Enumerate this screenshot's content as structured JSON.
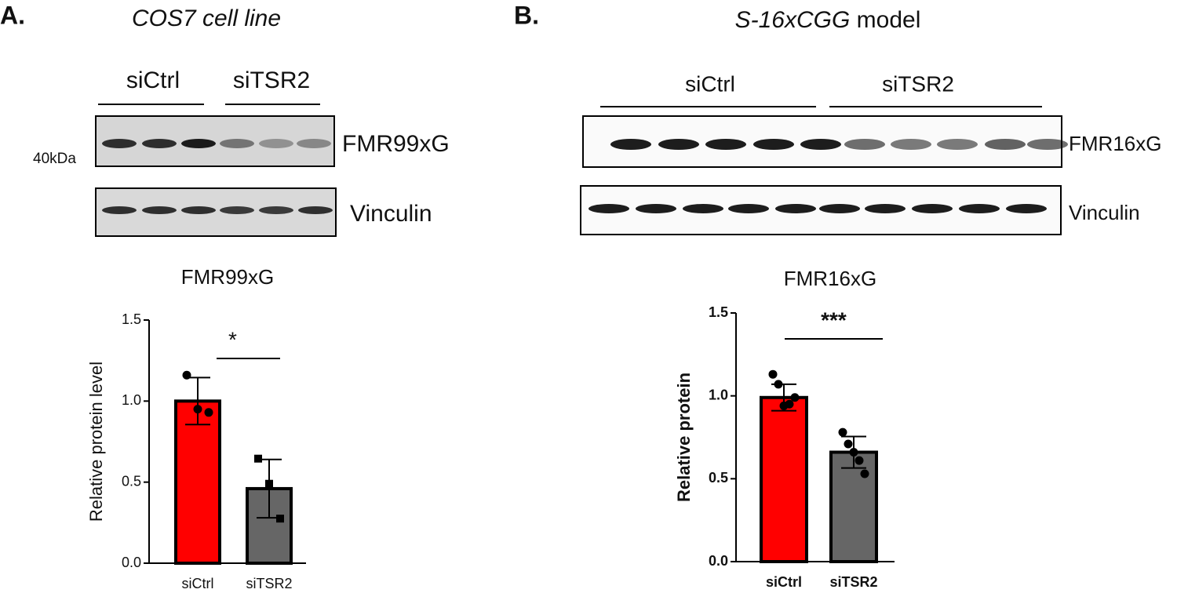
{
  "panels": [
    {
      "label": "A.",
      "title": "COS7 cell line",
      "groups": [
        "siCtrl",
        "siTSR2"
      ],
      "blots": [
        "FMR99xG",
        "Vinculin"
      ],
      "marker": "40kDa"
    },
    {
      "label": "B.",
      "title_italic": "S-16xCGG",
      "title": "model",
      "groups": [
        "siCtrl",
        "siTSR2"
      ],
      "blots": [
        "FMR16xG",
        "Vinculin"
      ]
    }
  ],
  "chart_data": [
    {
      "type": "bar",
      "title": "FMR99xG",
      "y_label": "Relative protein level",
      "categories": [
        "siCtrl",
        "siTSR2"
      ],
      "values": [
        1.0,
        0.46
      ],
      "errors": [
        0.145,
        0.18
      ],
      "points": [
        [
          1.16,
          0.95,
          0.93
        ],
        [
          0.645,
          0.49,
          0.275
        ]
      ],
      "colors": [
        "#ff0000",
        "#666666"
      ],
      "significance": "*",
      "ylim": [
        0,
        1.5
      ],
      "yticks": [
        {
          "value": 0,
          "label": "0.0"
        },
        {
          "value": 0.5,
          "label": "0.5"
        },
        {
          "value": 1,
          "label": "1.0"
        },
        {
          "value": 1.5,
          "label": "1.5"
        }
      ]
    },
    {
      "type": "bar",
      "title": "FMR16xG",
      "y_label": "Relative protein",
      "categories": [
        "siCtrl",
        "siTSR2"
      ],
      "values": [
        0.99,
        0.66
      ],
      "errors": [
        0.08,
        0.095
      ],
      "points": [
        [
          1.13,
          1.07,
          0.94,
          0.95,
          0.99
        ],
        [
          0.78,
          0.71,
          0.66,
          0.61,
          0.53
        ]
      ],
      "colors": [
        "#ff0000",
        "#666666"
      ],
      "significance": "***",
      "ylim": [
        0,
        1.5
      ],
      "yticks": [
        {
          "value": 0,
          "label": "0.0"
        },
        {
          "value": 0.5,
          "label": "0.5"
        },
        {
          "value": 1,
          "label": "1.0"
        },
        {
          "value": 1.5,
          "label": "1.5"
        }
      ]
    }
  ]
}
